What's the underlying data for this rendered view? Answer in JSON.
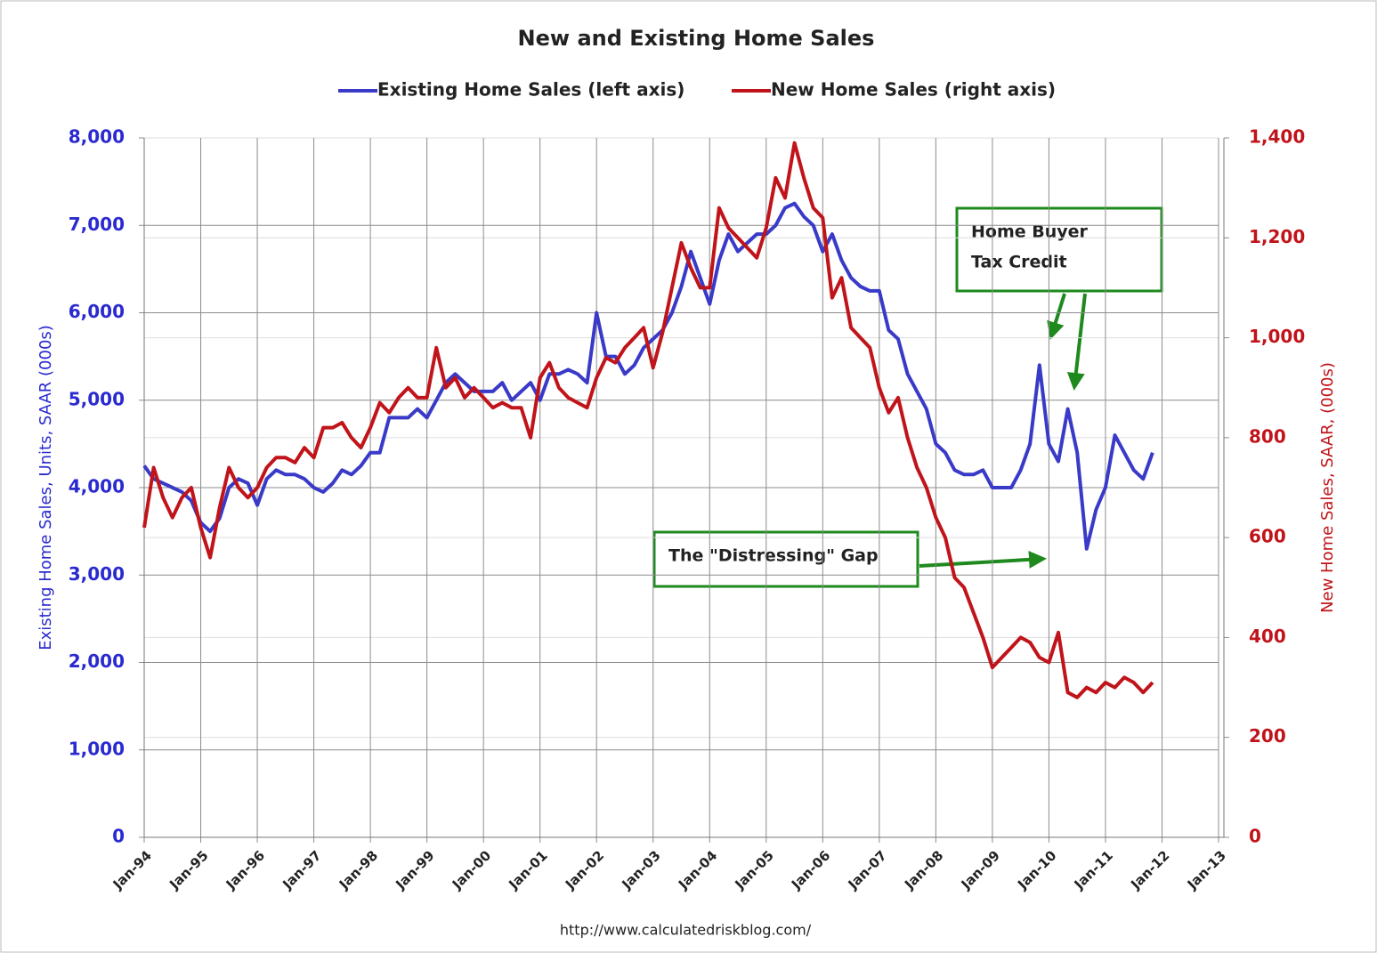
{
  "chart_data": {
    "type": "line",
    "title": "New and Existing Home Sales",
    "y_label": "Existing Home Sales, Units, SAAR (000s)",
    "y2_label": "New Home Sales, SAAR, (000s)",
    "source": "http://www.calculatedriskblog.com/",
    "annotations": [
      {
        "lines": [
          "Home Buyer",
          "Tax Credit"
        ]
      },
      {
        "text": "The \"Distressing\" Gap"
      }
    ],
    "legend": "top",
    "grid": true,
    "xlim": [
      "Jan-94",
      "Jan-13"
    ],
    "xticks": [
      "Jan-94",
      "Jan-95",
      "Jan-96",
      "Jan-97",
      "Jan-98",
      "Jan-99",
      "Jan-00",
      "Jan-01",
      "Jan-02",
      "Jan-03",
      "Jan-04",
      "Jan-05",
      "Jan-06",
      "Jan-07",
      "Jan-08",
      "Jan-09",
      "Jan-10",
      "Jan-11",
      "Jan-12",
      "Jan-13"
    ],
    "ylim": [
      0,
      8000
    ],
    "yticks": [
      0,
      {
        "value": 1000,
        "label": "1,000"
      },
      {
        "value": 2000,
        "label": "2,000"
      },
      {
        "value": 3000,
        "label": "3,000"
      },
      {
        "value": 4000,
        "label": "4,000"
      },
      {
        "value": 5000,
        "label": "5,000"
      },
      {
        "value": 6000,
        "label": "6,000"
      },
      {
        "value": 7000,
        "label": "7,000"
      },
      {
        "value": 8000,
        "label": "8,000"
      }
    ],
    "y2lim": [
      0,
      1400
    ],
    "y2ticks": [
      0,
      200,
      400,
      600,
      800,
      {
        "value": 1000,
        "label": "1,000"
      },
      {
        "value": 1200,
        "label": "1,200"
      },
      {
        "value": 1400,
        "label": "1,400"
      }
    ],
    "x": [
      "Jan-94",
      "Mar-94",
      "May-94",
      "Jul-94",
      "Sep-94",
      "Nov-94",
      "Jan-95",
      "Mar-95",
      "May-95",
      "Jul-95",
      "Sep-95",
      "Nov-95",
      "Jan-96",
      "Mar-96",
      "May-96",
      "Jul-96",
      "Sep-96",
      "Nov-96",
      "Jan-97",
      "Mar-97",
      "May-97",
      "Jul-97",
      "Sep-97",
      "Nov-97",
      "Jan-98",
      "Mar-98",
      "May-98",
      "Jul-98",
      "Sep-98",
      "Nov-98",
      "Jan-99",
      "Mar-99",
      "May-99",
      "Jul-99",
      "Sep-99",
      "Nov-99",
      "Jan-00",
      "Mar-00",
      "May-00",
      "Jul-00",
      "Sep-00",
      "Nov-00",
      "Jan-01",
      "Mar-01",
      "May-01",
      "Jul-01",
      "Sep-01",
      "Nov-01",
      "Jan-02",
      "Mar-02",
      "May-02",
      "Jul-02",
      "Sep-02",
      "Nov-02",
      "Jan-03",
      "Mar-03",
      "May-03",
      "Jul-03",
      "Sep-03",
      "Nov-03",
      "Jan-04",
      "Mar-04",
      "May-04",
      "Jul-04",
      "Sep-04",
      "Nov-04",
      "Jan-05",
      "Mar-05",
      "May-05",
      "Jul-05",
      "Sep-05",
      "Nov-05",
      "Jan-06",
      "Mar-06",
      "May-06",
      "Jul-06",
      "Sep-06",
      "Nov-06",
      "Jan-07",
      "Mar-07",
      "May-07",
      "Jul-07",
      "Sep-07",
      "Nov-07",
      "Jan-08",
      "Mar-08",
      "May-08",
      "Jul-08",
      "Sep-08",
      "Nov-08",
      "Jan-09",
      "Mar-09",
      "May-09",
      "Jul-09",
      "Sep-09",
      "Nov-09",
      "Jan-10",
      "Mar-10",
      "May-10",
      "Jul-10",
      "Sep-10",
      "Nov-10",
      "Jan-11",
      "Mar-11",
      "May-11",
      "Jul-11",
      "Sep-11",
      "Nov-11"
    ],
    "series": [
      {
        "name": "Existing Home Sales (left axis)",
        "color": "#3a3ac8",
        "axis": "y",
        "values": [
          4250,
          4100,
          4050,
          4000,
          3950,
          3850,
          3600,
          3500,
          3650,
          4000,
          4100,
          4050,
          3800,
          4100,
          4200,
          4150,
          4150,
          4100,
          4000,
          3950,
          4050,
          4200,
          4150,
          4250,
          4400,
          4400,
          4800,
          4800,
          4800,
          4900,
          4800,
          5000,
          5200,
          5300,
          5200,
          5100,
          5100,
          5100,
          5200,
          5000,
          5100,
          5200,
          5000,
          5300,
          5300,
          5350,
          5300,
          5200,
          6000,
          5500,
          5500,
          5300,
          5400,
          5600,
          5700,
          5800,
          6000,
          6300,
          6700,
          6400,
          6100,
          6600,
          6900,
          6700,
          6800,
          6900,
          6900,
          7000,
          7200,
          7250,
          7100,
          7000,
          6700,
          6900,
          6600,
          6400,
          6300,
          6250,
          6250,
          5800,
          5700,
          5300,
          5100,
          4900,
          4500,
          4400,
          4200,
          4150,
          4150,
          4200,
          4000,
          4000,
          4000,
          4200,
          4500,
          5400,
          4500,
          4300,
          4900,
          4400,
          3300,
          3750,
          4000,
          4600,
          4400,
          4200,
          4100,
          4400
        ]
      },
      {
        "name": "New Home Sales (right axis)",
        "color": "#c0141a",
        "axis": "y2",
        "values": [
          620,
          740,
          680,
          640,
          680,
          700,
          620,
          560,
          660,
          740,
          700,
          680,
          700,
          740,
          760,
          760,
          750,
          780,
          760,
          820,
          820,
          830,
          800,
          780,
          820,
          870,
          850,
          880,
          900,
          880,
          880,
          980,
          900,
          920,
          880,
          900,
          880,
          860,
          870,
          860,
          860,
          800,
          920,
          950,
          900,
          880,
          870,
          860,
          920,
          960,
          950,
          980,
          1000,
          1020,
          940,
          1010,
          1100,
          1190,
          1140,
          1100,
          1100,
          1260,
          1220,
          1200,
          1180,
          1160,
          1220,
          1320,
          1280,
          1390,
          1320,
          1260,
          1240,
          1080,
          1120,
          1020,
          1000,
          980,
          900,
          850,
          880,
          800,
          740,
          700,
          640,
          600,
          520,
          500,
          450,
          400,
          340,
          360,
          380,
          400,
          390,
          360,
          350,
          410,
          290,
          280,
          300,
          290,
          310,
          300,
          320,
          310,
          290,
          310
        ]
      }
    ]
  }
}
